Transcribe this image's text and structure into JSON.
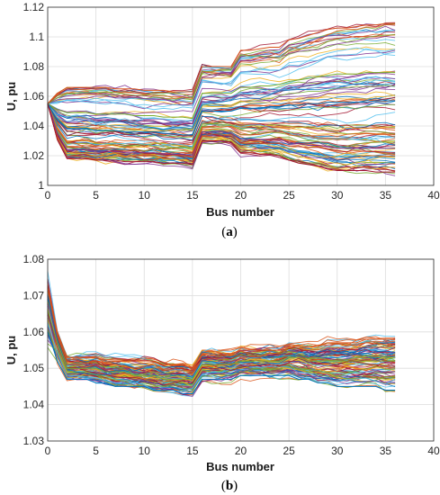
{
  "chart_data": [
    {
      "type": "line",
      "caption_prefix": "(",
      "caption_letter": "a",
      "caption_suffix": ")",
      "xlabel": "Bus number",
      "ylabel": "U, pu",
      "xlim": [
        0,
        40
      ],
      "ylim": [
        1.0,
        1.12
      ],
      "xticks": [
        "0",
        "5",
        "10",
        "15",
        "20",
        "25",
        "30",
        "35",
        "40"
      ],
      "yticks": [
        "1",
        "1.02",
        "1.04",
        "1.06",
        "1.08",
        "1.1",
        "1.12"
      ],
      "grid": true,
      "x": [
        0,
        1,
        2,
        3,
        4,
        5,
        6,
        7,
        8,
        9,
        10,
        11,
        12,
        13,
        14,
        15,
        16,
        17,
        18,
        19,
        20,
        21,
        22,
        23,
        24,
        25,
        26,
        27,
        28,
        29,
        30,
        31,
        32,
        33,
        34,
        35,
        36
      ],
      "series_count": 100,
      "series": [
        {
          "values": [
            1.055,
            1.062,
            1.066,
            1.066,
            1.066,
            1.066,
            1.066,
            1.065,
            1.065,
            1.065,
            1.064,
            1.064,
            1.064,
            1.063,
            1.063,
            1.063,
            1.08,
            1.08,
            1.08,
            1.08,
            1.091,
            1.091,
            1.092,
            1.093,
            1.093,
            1.098,
            1.099,
            1.101,
            1.103,
            1.105,
            1.106,
            1.106,
            1.107,
            1.108,
            1.108,
            1.109,
            1.109
          ]
        },
        {
          "values": [
            1.055,
            1.051,
            1.049,
            1.049,
            1.049,
            1.048,
            1.048,
            1.048,
            1.048,
            1.047,
            1.047,
            1.047,
            1.046,
            1.046,
            1.046,
            1.045,
            1.062,
            1.062,
            1.062,
            1.062,
            1.066,
            1.066,
            1.067,
            1.067,
            1.068,
            1.07,
            1.071,
            1.072,
            1.073,
            1.074,
            1.075,
            1.075,
            1.075,
            1.076,
            1.076,
            1.076,
            1.076
          ]
        },
        {
          "values": [
            1.055,
            1.044,
            1.038,
            1.038,
            1.038,
            1.037,
            1.037,
            1.037,
            1.036,
            1.036,
            1.036,
            1.036,
            1.035,
            1.035,
            1.034,
            1.034,
            1.05,
            1.05,
            1.05,
            1.05,
            1.052,
            1.052,
            1.052,
            1.053,
            1.053,
            1.054,
            1.054,
            1.055,
            1.055,
            1.056,
            1.056,
            1.056,
            1.056,
            1.056,
            1.057,
            1.057,
            1.057
          ]
        },
        {
          "values": [
            1.055,
            1.035,
            1.024,
            1.024,
            1.024,
            1.023,
            1.023,
            1.023,
            1.022,
            1.022,
            1.022,
            1.022,
            1.021,
            1.021,
            1.021,
            1.02,
            1.036,
            1.036,
            1.036,
            1.035,
            1.031,
            1.031,
            1.031,
            1.031,
            1.031,
            1.029,
            1.028,
            1.027,
            1.027,
            1.026,
            1.025,
            1.025,
            1.025,
            1.025,
            1.025,
            1.025,
            1.025
          ]
        },
        {
          "values": [
            1.055,
            1.031,
            1.018,
            1.018,
            1.018,
            1.017,
            1.017,
            1.017,
            1.016,
            1.016,
            1.016,
            1.016,
            1.015,
            1.015,
            1.015,
            1.014,
            1.03,
            1.03,
            1.03,
            1.029,
            1.022,
            1.022,
            1.021,
            1.021,
            1.02,
            1.017,
            1.015,
            1.014,
            1.013,
            1.011,
            1.01,
            1.01,
            1.01,
            1.01,
            1.009,
            1.009,
            1.009
          ]
        }
      ]
    },
    {
      "type": "line",
      "caption_prefix": "(",
      "caption_letter": "b",
      "caption_suffix": ")",
      "xlabel": "Bus number",
      "ylabel": "U, pu",
      "xlim": [
        0,
        40
      ],
      "ylim": [
        1.03,
        1.08
      ],
      "xticks": [
        "0",
        "5",
        "10",
        "15",
        "20",
        "25",
        "30",
        "35",
        "40"
      ],
      "yticks": [
        "1.03",
        "1.04",
        "1.05",
        "1.06",
        "1.07",
        "1.08"
      ],
      "grid": true,
      "x": [
        0,
        1,
        2,
        3,
        4,
        5,
        6,
        7,
        8,
        9,
        10,
        11,
        12,
        13,
        14,
        15,
        16,
        17,
        18,
        19,
        20,
        21,
        22,
        23,
        24,
        25,
        26,
        27,
        28,
        29,
        30,
        31,
        32,
        33,
        34,
        35,
        36
      ],
      "series_count": 100,
      "series": [
        {
          "values": [
            1.072,
            1.06,
            1.053,
            1.053,
            1.053,
            1.053,
            1.052,
            1.052,
            1.052,
            1.052,
            1.052,
            1.052,
            1.051,
            1.051,
            1.051,
            1.05,
            1.054,
            1.054,
            1.054,
            1.054,
            1.055,
            1.055,
            1.055,
            1.055,
            1.055,
            1.056,
            1.056,
            1.056,
            1.056,
            1.057,
            1.057,
            1.057,
            1.057,
            1.058,
            1.058,
            1.058,
            1.058
          ]
        },
        {
          "values": [
            1.066,
            1.057,
            1.05,
            1.05,
            1.05,
            1.05,
            1.049,
            1.049,
            1.049,
            1.048,
            1.048,
            1.048,
            1.047,
            1.047,
            1.047,
            1.047,
            1.051,
            1.051,
            1.051,
            1.051,
            1.052,
            1.052,
            1.052,
            1.052,
            1.052,
            1.053,
            1.053,
            1.052,
            1.052,
            1.052,
            1.052,
            1.052,
            1.052,
            1.052,
            1.052,
            1.052,
            1.052
          ]
        },
        {
          "values": [
            1.06,
            1.052,
            1.047,
            1.047,
            1.047,
            1.046,
            1.046,
            1.045,
            1.045,
            1.045,
            1.045,
            1.044,
            1.044,
            1.044,
            1.043,
            1.043,
            1.047,
            1.047,
            1.047,
            1.047,
            1.048,
            1.048,
            1.048,
            1.048,
            1.048,
            1.048,
            1.047,
            1.047,
            1.046,
            1.046,
            1.045,
            1.045,
            1.045,
            1.045,
            1.045,
            1.044,
            1.044
          ]
        }
      ]
    }
  ]
}
